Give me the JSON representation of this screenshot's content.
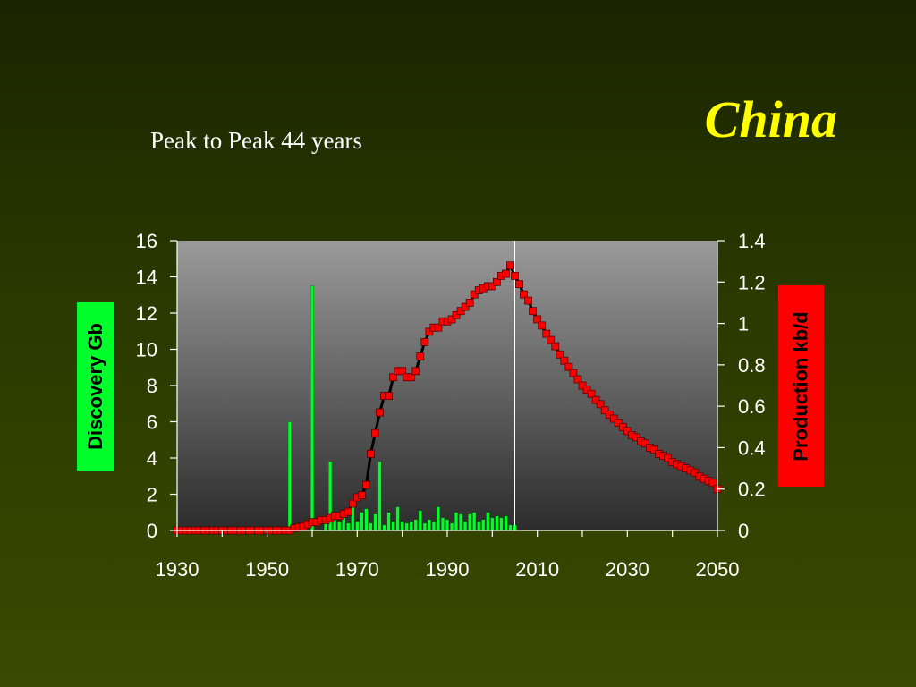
{
  "slide": {
    "title": "China",
    "subtitle": "Peak to Peak  44 years"
  },
  "colors": {
    "title": "#ffff00",
    "discovery": "#00ff2a",
    "production_marker": "#ff0000",
    "production_line": "#000000",
    "left_label_bg": "#00ff2a",
    "right_label_bg": "#ff0000"
  },
  "chart_data": {
    "type": "bar+line",
    "ylabel": "Discovery Gb",
    "y2label": "Production kb/d",
    "xlim": [
      1930,
      2050
    ],
    "ylim": [
      0,
      16
    ],
    "y2lim": [
      0,
      1.4
    ],
    "x_ticks": [
      1930,
      1950,
      1970,
      1990,
      2010,
      2030,
      2050
    ],
    "y_ticks": [
      0,
      2,
      4,
      6,
      8,
      10,
      12,
      14,
      16
    ],
    "y2_ticks": [
      "0",
      "0.2",
      "0.4",
      "0.6",
      "0.8",
      "1",
      "1.2",
      "1.4"
    ],
    "peak_line_year": 2005,
    "series": [
      {
        "name": "Discovery Gb",
        "axis": "left",
        "kind": "bar",
        "x": [
          1955,
          1960,
          1963,
          1964,
          1965,
          1966,
          1967,
          1968,
          1969,
          1970,
          1971,
          1972,
          1973,
          1974,
          1975,
          1976,
          1977,
          1978,
          1979,
          1980,
          1981,
          1982,
          1983,
          1984,
          1985,
          1986,
          1987,
          1988,
          1989,
          1990,
          1991,
          1992,
          1993,
          1994,
          1995,
          1996,
          1997,
          1998,
          1999,
          2000,
          2001,
          2002,
          2003,
          2004,
          2005
        ],
        "values": [
          6.0,
          13.5,
          0.4,
          3.8,
          0.6,
          0.5,
          0.8,
          0.4,
          1.6,
          0.5,
          1.0,
          1.2,
          0.4,
          0.9,
          3.8,
          0.3,
          1.0,
          0.5,
          1.3,
          0.5,
          0.4,
          0.5,
          0.6,
          1.1,
          0.4,
          0.6,
          0.5,
          1.3,
          0.7,
          0.6,
          0.4,
          1.0,
          0.9,
          0.5,
          0.9,
          1.0,
          0.5,
          0.6,
          1.0,
          0.7,
          0.8,
          0.7,
          0.8,
          0.3,
          0.3
        ]
      },
      {
        "name": "Production kb/d",
        "axis": "right",
        "kind": "line",
        "x": [
          1930,
          1931,
          1932,
          1933,
          1934,
          1935,
          1936,
          1937,
          1938,
          1939,
          1940,
          1941,
          1942,
          1943,
          1944,
          1945,
          1946,
          1947,
          1948,
          1949,
          1950,
          1951,
          1952,
          1953,
          1954,
          1955,
          1956,
          1957,
          1958,
          1959,
          1960,
          1961,
          1962,
          1963,
          1964,
          1965,
          1966,
          1967,
          1968,
          1969,
          1970,
          1971,
          1972,
          1973,
          1974,
          1975,
          1976,
          1977,
          1978,
          1979,
          1980,
          1981,
          1982,
          1983,
          1984,
          1985,
          1986,
          1987,
          1988,
          1989,
          1990,
          1991,
          1992,
          1993,
          1994,
          1995,
          1996,
          1997,
          1998,
          1999,
          2000,
          2001,
          2002,
          2003,
          2004,
          2005,
          2006,
          2007,
          2008,
          2009,
          2010,
          2011,
          2012,
          2013,
          2014,
          2015,
          2016,
          2017,
          2018,
          2019,
          2020,
          2021,
          2022,
          2023,
          2024,
          2025,
          2026,
          2027,
          2028,
          2029,
          2030,
          2031,
          2032,
          2033,
          2034,
          2035,
          2036,
          2037,
          2038,
          2039,
          2040,
          2041,
          2042,
          2043,
          2044,
          2045,
          2046,
          2047,
          2048,
          2049,
          2050
        ],
        "values": [
          0.0,
          0.0,
          0.0,
          0.0,
          0.0,
          0.0,
          0.0,
          0.0,
          0.0,
          0.0,
          0.0,
          0.0,
          0.0,
          0.0,
          0.0,
          0.0,
          0.0,
          0.0,
          0.0,
          0.0,
          0.0,
          0.0,
          0.0,
          0.0,
          0.0,
          0.0,
          0.01,
          0.015,
          0.02,
          0.03,
          0.04,
          0.04,
          0.05,
          0.05,
          0.06,
          0.07,
          0.07,
          0.08,
          0.09,
          0.13,
          0.16,
          0.17,
          0.22,
          0.37,
          0.47,
          0.57,
          0.65,
          0.65,
          0.74,
          0.77,
          0.77,
          0.74,
          0.74,
          0.77,
          0.84,
          0.91,
          0.96,
          0.98,
          0.98,
          1.01,
          1.01,
          1.02,
          1.04,
          1.06,
          1.08,
          1.1,
          1.14,
          1.16,
          1.17,
          1.18,
          1.18,
          1.2,
          1.23,
          1.24,
          1.28,
          1.23,
          1.19,
          1.14,
          1.11,
          1.06,
          1.02,
          0.99,
          0.95,
          0.92,
          0.89,
          0.85,
          0.82,
          0.79,
          0.76,
          0.73,
          0.7,
          0.68,
          0.66,
          0.63,
          0.61,
          0.58,
          0.56,
          0.54,
          0.52,
          0.5,
          0.48,
          0.46,
          0.45,
          0.43,
          0.42,
          0.4,
          0.39,
          0.37,
          0.36,
          0.35,
          0.33,
          0.32,
          0.31,
          0.3,
          0.29,
          0.28,
          0.26,
          0.25,
          0.24,
          0.23,
          0.2
        ]
      }
    ]
  }
}
